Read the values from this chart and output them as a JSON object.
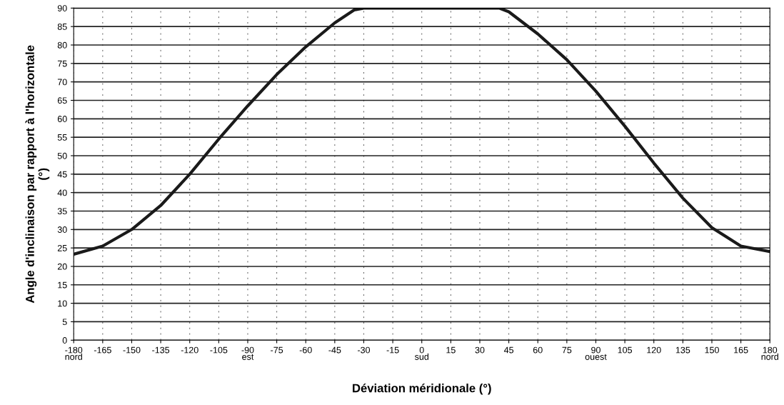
{
  "chart_data": {
    "type": "line",
    "xlabel": "Déviation méridionale (°)",
    "ylabel": "Angle d'inclinaison par rapport à l'horizontale\n(°)",
    "x": [
      -180,
      -165,
      -150,
      -135,
      -120,
      -105,
      -90,
      -75,
      -60,
      -45,
      -35,
      -30,
      -15,
      0,
      15,
      30,
      40,
      45,
      60,
      75,
      90,
      105,
      120,
      135,
      150,
      165,
      180
    ],
    "series": [
      {
        "color": "#1a1a1a",
        "values": [
          23.3,
          25.5,
          30,
          36.5,
          45,
          54.5,
          63.5,
          72,
          79.5,
          86,
          89.5,
          90,
          90,
          90,
          90,
          90,
          90,
          89,
          83,
          76,
          67.5,
          58,
          48,
          38.5,
          30.5,
          25.5,
          24
        ]
      }
    ],
    "xlim": [
      -180,
      180
    ],
    "xticks": [
      {
        "value": -180,
        "label": "-180\nnord"
      },
      -165,
      -150,
      -135,
      -120,
      -105,
      {
        "value": -90,
        "label": "-90\nest"
      },
      -75,
      -60,
      -45,
      -30,
      -15,
      {
        "value": 0,
        "label": "0\nsud"
      },
      15,
      30,
      45,
      60,
      75,
      {
        "value": 90,
        "label": "90\nouest"
      },
      105,
      120,
      135,
      150,
      165,
      {
        "value": 180,
        "label": "180\nnord"
      }
    ],
    "ylim": [
      0,
      90
    ],
    "yticks": [
      0,
      5,
      10,
      15,
      20,
      25,
      30,
      35,
      40,
      45,
      50,
      55,
      60,
      65,
      70,
      75,
      80,
      85,
      90
    ],
    "grid": true,
    "marker": "none",
    "line_style": "solid",
    "legend": false
  }
}
